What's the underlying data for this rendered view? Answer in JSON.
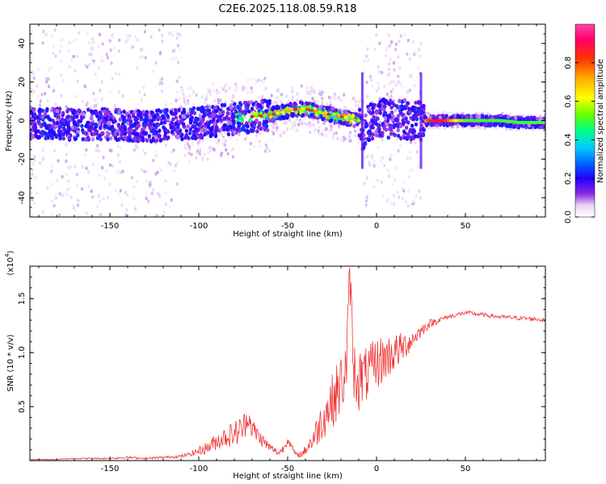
{
  "chart_data": [
    {
      "type": "heatmap",
      "title": "C2E6.2025.118.08.59.R18",
      "xlabel": "Height of straight line (km)",
      "ylabel": "Frequency (Hz)",
      "xlim": [
        -195,
        95
      ],
      "ylim": [
        -50,
        50
      ],
      "x_ticks": [
        -150,
        -100,
        -50,
        0,
        50
      ],
      "x_tick_labels": [
        "-150",
        "-100",
        "-50",
        "0",
        "50"
      ],
      "y_ticks": [
        -40,
        -20,
        0,
        20,
        40
      ],
      "y_tick_labels": [
        "-40",
        "-20",
        "0",
        "20",
        "40"
      ],
      "colorbar": {
        "label": "Normalized spectral amplitude",
        "range": [
          0,
          1
        ],
        "ticks": [
          0.0,
          0.2,
          0.4,
          0.6,
          0.8
        ],
        "tick_labels": [
          "0.0",
          "0.2",
          "0.4",
          "0.6",
          "0.8"
        ],
        "colormap": [
          "#ffffff",
          "#e8d5f5",
          "#8a2be2",
          "#2200ff",
          "#0066ff",
          "#00ccff",
          "#00ff88",
          "#66ff00",
          "#ffff00",
          "#ffaa00",
          "#ff3300",
          "#ff0066",
          "#ff44aa"
        ]
      },
      "ridge": {
        "x": [
          -195,
          -170,
          -150,
          -130,
          -110,
          -100,
          -90,
          -80,
          -70,
          -60,
          -55,
          -50,
          -45,
          -40,
          -35,
          -30,
          -25,
          -20,
          -15,
          -10,
          -7,
          -5,
          0,
          5,
          10,
          15,
          20,
          25,
          30,
          40,
          50,
          60,
          70,
          80,
          90,
          95
        ],
        "y": [
          -1,
          -2,
          -2,
          -3,
          -2,
          -1,
          0,
          1,
          2,
          3,
          4,
          5,
          6,
          6,
          5,
          4,
          3,
          2,
          1,
          0,
          -8,
          -1,
          2,
          1,
          0,
          1,
          0,
          0,
          0,
          0,
          0,
          0,
          0,
          -1,
          -1,
          -1
        ]
      },
      "gap_x": [
        -8,
        25
      ]
    },
    {
      "type": "line",
      "xlabel": "Height of straight line (km)",
      "ylabel": "SNR (10 * v/v)",
      "y_multiplier": "(x10",
      "y_multiplier_exp": "4",
      "xlim": [
        -195,
        95
      ],
      "ylim": [
        0,
        1.8
      ],
      "x_ticks": [
        -150,
        -100,
        -50,
        0,
        50
      ],
      "x_tick_labels": [
        "-150",
        "-100",
        "-50",
        "0",
        "50"
      ],
      "y_ticks": [
        0.5,
        1.0,
        1.5
      ],
      "y_tick_labels": [
        "0.5",
        "1.0",
        "1.5"
      ],
      "series": [
        {
          "color": "#ee3333",
          "x": [
            -195,
            -180,
            -170,
            -160,
            -150,
            -140,
            -130,
            -120,
            -110,
            -105,
            -100,
            -95,
            -90,
            -85,
            -80,
            -75,
            -72,
            -70,
            -65,
            -60,
            -55,
            -52,
            -50,
            -47,
            -45,
            -42,
            -40,
            -35,
            -30,
            -25,
            -20,
            -17,
            -15,
            -13,
            -10,
            -5,
            0,
            5,
            10,
            15,
            20,
            25,
            30,
            35,
            40,
            45,
            50,
            55,
            60,
            70,
            80,
            90,
            95
          ],
          "y": [
            0.01,
            0.01,
            0.02,
            0.02,
            0.02,
            0.03,
            0.02,
            0.03,
            0.04,
            0.06,
            0.09,
            0.12,
            0.18,
            0.22,
            0.25,
            0.3,
            0.42,
            0.3,
            0.2,
            0.12,
            0.07,
            0.12,
            0.2,
            0.1,
            0.05,
            0.06,
            0.1,
            0.22,
            0.4,
            0.55,
            0.7,
            0.85,
            1.75,
            0.85,
            0.75,
            0.8,
            0.9,
            0.95,
            1.0,
            1.05,
            1.12,
            1.2,
            1.27,
            1.3,
            1.33,
            1.35,
            1.37,
            1.36,
            1.35,
            1.33,
            1.32,
            1.31,
            1.3
          ],
          "noise": [
            0.005,
            0.005,
            0.005,
            0.008,
            0.008,
            0.01,
            0.01,
            0.01,
            0.015,
            0.02,
            0.04,
            0.06,
            0.08,
            0.1,
            0.12,
            0.14,
            0.1,
            0.1,
            0.07,
            0.04,
            0.03,
            0.04,
            0.04,
            0.03,
            0.02,
            0.03,
            0.05,
            0.12,
            0.2,
            0.25,
            0.3,
            0.3,
            0.2,
            0.3,
            0.3,
            0.25,
            0.25,
            0.22,
            0.18,
            0.14,
            0.09,
            0.06,
            0.04,
            0.03,
            0.02,
            0.02,
            0.02,
            0.02,
            0.02,
            0.02,
            0.02,
            0.02,
            0.02
          ]
        }
      ]
    }
  ]
}
